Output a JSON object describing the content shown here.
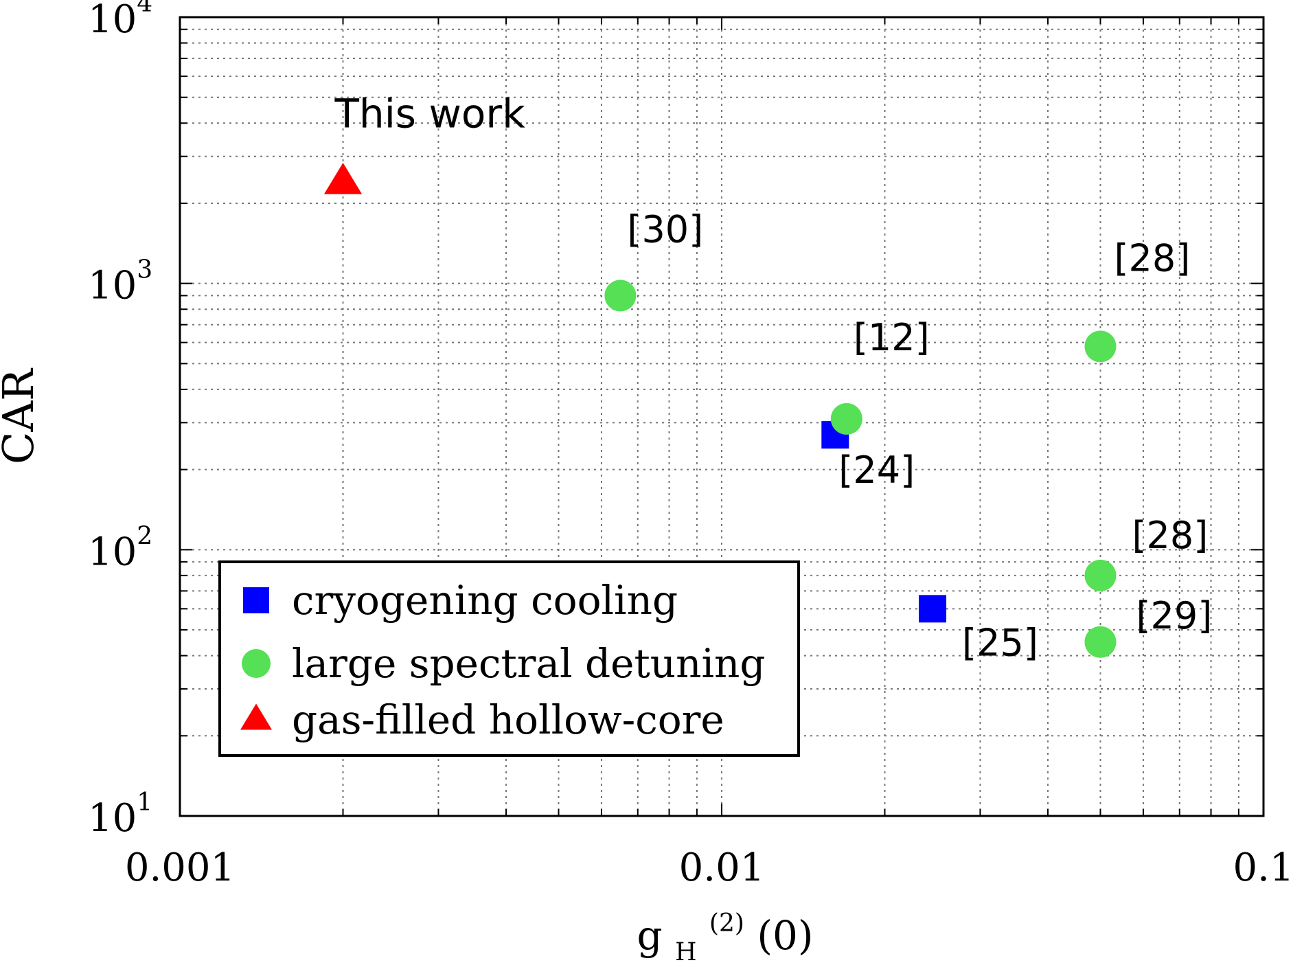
{
  "chart_data": {
    "type": "scatter",
    "xscale": "log",
    "yscale": "log",
    "xlim": [
      0.001,
      0.1
    ],
    "ylim": [
      10,
      10000
    ],
    "grid": true,
    "xlabel": {
      "base": "g",
      "sub": "H",
      "sup": "(2)",
      "tail": "(0)"
    },
    "ylabel": "CAR",
    "x_ticks": [
      {
        "value": 0.001,
        "label": "0.001"
      },
      {
        "value": 0.01,
        "label": "0.01"
      },
      {
        "value": 0.1,
        "label": "0.1"
      }
    ],
    "y_ticks": [
      {
        "value": 10,
        "base": "10",
        "exp": "1"
      },
      {
        "value": 100,
        "base": "10",
        "exp": "2"
      },
      {
        "value": 1000,
        "base": "10",
        "exp": "3"
      },
      {
        "value": 10000,
        "base": "10",
        "exp": "4"
      }
    ],
    "legend_position": "bottom-left",
    "series": [
      {
        "name": "cryogening cooling",
        "marker": "square",
        "color": "#0000ff",
        "points": [
          {
            "x": 0.0162,
            "y": 270,
            "label": "[24]"
          },
          {
            "x": 0.0245,
            "y": 60,
            "label": "[25]"
          }
        ]
      },
      {
        "name": "large spectral detuning",
        "marker": "circle",
        "color": "#55e055",
        "points": [
          {
            "x": 0.0065,
            "y": 900,
            "label": "[30]"
          },
          {
            "x": 0.017,
            "y": 310,
            "label": "[12]"
          },
          {
            "x": 0.05,
            "y": 580,
            "label": "[28]"
          },
          {
            "x": 0.05,
            "y": 80,
            "label": "[28]"
          },
          {
            "x": 0.05,
            "y": 45,
            "label": "[29]"
          }
        ]
      },
      {
        "name": "gas-filled hollow-core",
        "marker": "triangle",
        "color": "#ff0000",
        "points": [
          {
            "x": 0.002,
            "y": 2400,
            "label": "This work"
          }
        ]
      }
    ]
  }
}
